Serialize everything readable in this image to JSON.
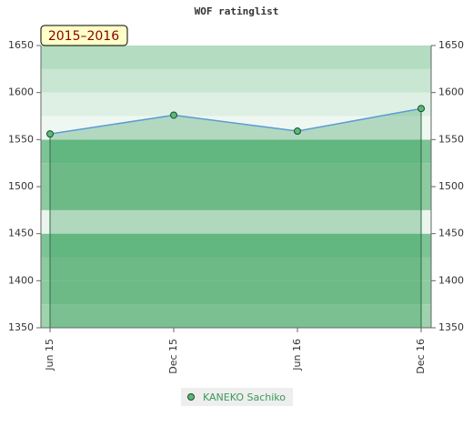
{
  "chart_data": {
    "type": "line",
    "title": "WOF ratinglist",
    "annotation": "2015–2016",
    "categories": [
      "Jun 15",
      "Dec 15",
      "Jun 16",
      "Dec 16"
    ],
    "series": [
      {
        "name": "KANEKO Sachiko",
        "color": "#5cb87a",
        "values": [
          1556,
          1576,
          1559,
          1583
        ]
      }
    ],
    "ylim": [
      1350,
      1650
    ],
    "yticks": [
      1350,
      1400,
      1450,
      1500,
      1550,
      1600,
      1650
    ],
    "y2lim": [
      1350,
      1650
    ],
    "y2ticks": [
      1350,
      1400,
      1450,
      1500,
      1550,
      1600,
      1650
    ],
    "area": true
  }
}
